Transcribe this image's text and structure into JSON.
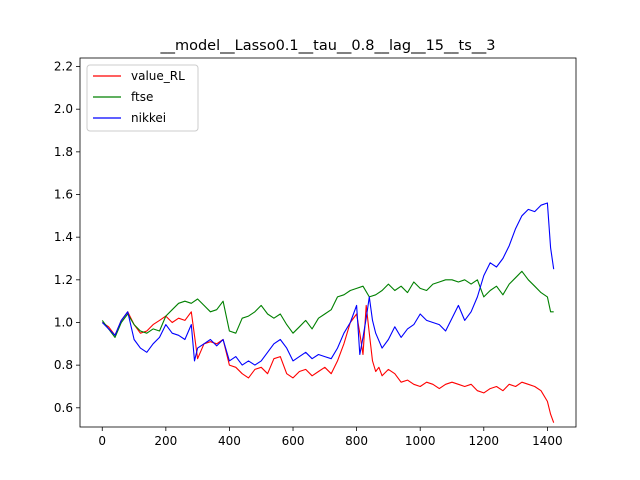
{
  "chart_data": {
    "type": "line",
    "title": "__model__Lasso0.1__tau__0.8__lag__15__ts__3",
    "xlabel": "",
    "ylabel": "",
    "xlim": [
      -70,
      1490
    ],
    "ylim": [
      0.51,
      2.24
    ],
    "xticks": [
      0,
      200,
      400,
      600,
      800,
      1000,
      1200,
      1400
    ],
    "yticks": [
      0.6,
      0.8,
      1.0,
      1.2,
      1.4,
      1.6,
      1.8,
      2.0,
      2.2
    ],
    "xtick_labels": [
      "0",
      "200",
      "400",
      "600",
      "800",
      "1000",
      "1200",
      "1400"
    ],
    "ytick_labels": [
      "0.6",
      "0.8",
      "1.0",
      "1.2",
      "1.4",
      "1.6",
      "1.8",
      "2.0",
      "2.2"
    ],
    "grid": false,
    "legend_position": "upper left",
    "series": [
      {
        "name": "value_RL",
        "color": "#ff0000",
        "x": [
          0,
          20,
          40,
          60,
          80,
          100,
          120,
          140,
          160,
          180,
          200,
          220,
          240,
          260,
          280,
          300,
          320,
          340,
          360,
          380,
          400,
          420,
          440,
          460,
          480,
          500,
          520,
          540,
          560,
          580,
          600,
          620,
          640,
          660,
          680,
          700,
          720,
          740,
          760,
          780,
          800,
          810,
          820,
          830,
          840,
          850,
          860,
          870,
          880,
          900,
          920,
          940,
          960,
          980,
          1000,
          1020,
          1040,
          1060,
          1080,
          1100,
          1120,
          1140,
          1160,
          1180,
          1200,
          1220,
          1240,
          1260,
          1280,
          1300,
          1320,
          1340,
          1360,
          1380,
          1400,
          1410,
          1420
        ],
        "y": [
          1.0,
          0.98,
          0.94,
          1.01,
          1.05,
          0.99,
          0.95,
          0.96,
          0.99,
          1.01,
          1.03,
          1.0,
          1.02,
          1.01,
          1.05,
          0.83,
          0.9,
          0.91,
          0.9,
          0.92,
          0.8,
          0.79,
          0.76,
          0.74,
          0.78,
          0.79,
          0.76,
          0.83,
          0.84,
          0.76,
          0.74,
          0.77,
          0.78,
          0.75,
          0.77,
          0.79,
          0.76,
          0.82,
          0.9,
          1.0,
          1.04,
          0.95,
          0.85,
          1.08,
          0.95,
          0.82,
          0.77,
          0.79,
          0.75,
          0.78,
          0.76,
          0.72,
          0.73,
          0.71,
          0.7,
          0.72,
          0.71,
          0.69,
          0.71,
          0.72,
          0.71,
          0.7,
          0.71,
          0.68,
          0.67,
          0.69,
          0.7,
          0.68,
          0.71,
          0.7,
          0.72,
          0.71,
          0.7,
          0.68,
          0.63,
          0.57,
          0.53
        ]
      },
      {
        "name": "ftse",
        "color": "#008000",
        "x": [
          0,
          20,
          40,
          60,
          80,
          100,
          120,
          140,
          160,
          180,
          200,
          220,
          240,
          260,
          280,
          300,
          320,
          340,
          360,
          380,
          400,
          420,
          440,
          460,
          480,
          500,
          520,
          540,
          560,
          580,
          600,
          620,
          640,
          660,
          680,
          700,
          720,
          740,
          760,
          780,
          800,
          820,
          840,
          860,
          880,
          900,
          920,
          940,
          960,
          980,
          1000,
          1020,
          1040,
          1060,
          1080,
          1100,
          1120,
          1140,
          1160,
          1180,
          1200,
          1220,
          1240,
          1260,
          1280,
          1300,
          1320,
          1340,
          1360,
          1380,
          1400,
          1410,
          1420
        ],
        "y": [
          1.01,
          0.97,
          0.93,
          1.0,
          1.04,
          0.99,
          0.96,
          0.95,
          0.97,
          0.96,
          1.03,
          1.06,
          1.09,
          1.1,
          1.09,
          1.11,
          1.08,
          1.05,
          1.06,
          1.1,
          0.96,
          0.95,
          1.02,
          1.03,
          1.05,
          1.08,
          1.04,
          1.02,
          1.04,
          0.99,
          0.95,
          0.98,
          1.01,
          0.97,
          1.02,
          1.04,
          1.06,
          1.12,
          1.13,
          1.15,
          1.16,
          1.17,
          1.12,
          1.13,
          1.15,
          1.18,
          1.15,
          1.17,
          1.14,
          1.19,
          1.16,
          1.15,
          1.18,
          1.19,
          1.2,
          1.2,
          1.19,
          1.2,
          1.18,
          1.2,
          1.12,
          1.15,
          1.17,
          1.13,
          1.18,
          1.21,
          1.24,
          1.2,
          1.17,
          1.14,
          1.12,
          1.05,
          1.05
        ]
      },
      {
        "name": "nikkei",
        "color": "#0000ff",
        "x": [
          0,
          20,
          40,
          60,
          80,
          100,
          120,
          140,
          160,
          180,
          200,
          220,
          240,
          260,
          280,
          290,
          300,
          320,
          340,
          360,
          380,
          400,
          420,
          440,
          460,
          480,
          500,
          520,
          540,
          560,
          580,
          600,
          620,
          640,
          660,
          680,
          700,
          720,
          740,
          760,
          780,
          800,
          810,
          820,
          830,
          840,
          850,
          860,
          880,
          900,
          920,
          940,
          960,
          980,
          1000,
          1020,
          1040,
          1060,
          1080,
          1100,
          1120,
          1140,
          1160,
          1180,
          1200,
          1220,
          1240,
          1260,
          1280,
          1300,
          1320,
          1340,
          1360,
          1380,
          1400,
          1410,
          1420
        ],
        "y": [
          1.0,
          0.97,
          0.94,
          1.01,
          1.05,
          0.92,
          0.88,
          0.86,
          0.9,
          0.93,
          0.99,
          0.95,
          0.94,
          0.92,
          0.99,
          0.82,
          0.88,
          0.9,
          0.92,
          0.89,
          0.92,
          0.82,
          0.84,
          0.8,
          0.82,
          0.8,
          0.82,
          0.86,
          0.9,
          0.92,
          0.88,
          0.82,
          0.84,
          0.86,
          0.83,
          0.85,
          0.84,
          0.83,
          0.88,
          0.95,
          1.0,
          1.08,
          0.85,
          0.93,
          1.02,
          1.12,
          1.01,
          0.95,
          0.88,
          0.92,
          0.98,
          0.93,
          0.97,
          0.99,
          1.04,
          1.01,
          1.0,
          0.99,
          0.96,
          1.02,
          1.08,
          1.01,
          1.05,
          1.12,
          1.22,
          1.28,
          1.26,
          1.3,
          1.36,
          1.44,
          1.5,
          1.53,
          1.52,
          1.55,
          1.56,
          1.35,
          1.25
        ]
      }
    ]
  }
}
